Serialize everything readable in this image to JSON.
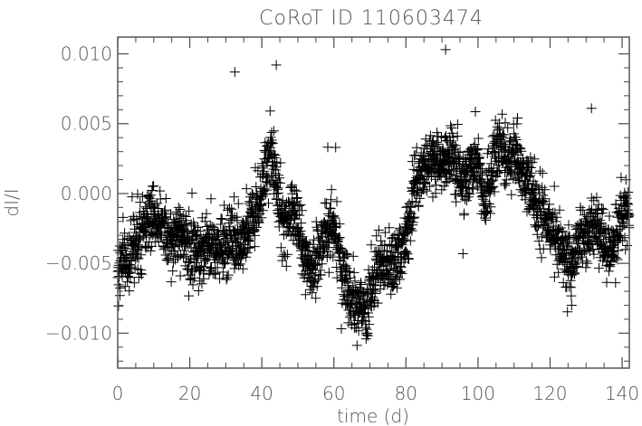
{
  "chart_data": {
    "type": "scatter",
    "title": "CoRoT ID 110603474",
    "xlabel": "time (d)",
    "ylabel": "dI/I",
    "xlim": [
      0,
      142
    ],
    "ylim": [
      -0.0125,
      0.0112
    ],
    "xticks": [
      0,
      20,
      40,
      60,
      80,
      100,
      120,
      140
    ],
    "xtick_labels": [
      "0",
      "20",
      "40",
      "60",
      "80",
      "100",
      "120",
      "140"
    ],
    "yticks": [
      -0.01,
      -0.005,
      0.0,
      0.005,
      0.01
    ],
    "ytick_labels": [
      "−0.010",
      "−0.005",
      "0.000",
      "0.005",
      "0.010"
    ],
    "marker": "+",
    "marker_color": "#000000",
    "axis_color": "#555555",
    "grid": false,
    "trend": {
      "x": [
        0,
        2,
        5,
        8,
        10,
        12,
        15,
        18,
        20,
        22,
        25,
        28,
        30,
        33,
        36,
        39,
        41,
        42,
        43,
        44,
        46,
        48,
        50,
        52,
        54,
        56,
        58,
        60,
        62,
        64,
        66,
        68,
        70,
        72,
        74,
        76,
        78,
        80,
        82,
        84,
        86,
        88,
        90,
        92,
        94,
        96,
        98,
        100,
        102,
        104,
        106,
        108,
        110,
        112,
        114,
        116,
        118,
        120,
        122,
        124,
        126,
        128,
        130,
        132,
        134,
        136,
        138,
        140,
        142
      ],
      "y": [
        -0.0055,
        -0.0048,
        -0.0035,
        -0.002,
        -0.0018,
        -0.0022,
        -0.003,
        -0.0028,
        -0.004,
        -0.0045,
        -0.0035,
        -0.0042,
        -0.0032,
        -0.0035,
        -0.0025,
        -0.001,
        0.0015,
        0.0035,
        0.0025,
        0.0005,
        -0.0025,
        -0.0008,
        -0.002,
        -0.0048,
        -0.0062,
        -0.0045,
        -0.0025,
        -0.0022,
        -0.005,
        -0.007,
        -0.008,
        -0.0085,
        -0.0075,
        -0.0055,
        -0.0045,
        -0.0052,
        -0.0045,
        -0.003,
        -0.0005,
        0.0015,
        0.0025,
        0.0022,
        0.002,
        0.0025,
        0.002,
        0.0008,
        0.0015,
        0.0025,
        -0.0005,
        0.002,
        0.003,
        0.0025,
        0.0028,
        0.002,
        0.0005,
        -0.0008,
        -0.0015,
        -0.0025,
        -0.0035,
        -0.0045,
        -0.005,
        -0.0035,
        -0.0028,
        -0.0022,
        -0.003,
        -0.0042,
        -0.0035,
        -0.0015,
        -0.0008
      ]
    },
    "scatter_sigma": 0.0011,
    "n_points": 2600,
    "outliers": [
      {
        "x": 32.5,
        "y": 0.0087
      },
      {
        "x": 91.0,
        "y": 0.0103
      },
      {
        "x": 131.5,
        "y": 0.0061
      },
      {
        "x": 126.0,
        "y": -0.008
      },
      {
        "x": 60.5,
        "y": 0.0033
      },
      {
        "x": 44.0,
        "y": 0.0092
      }
    ]
  }
}
